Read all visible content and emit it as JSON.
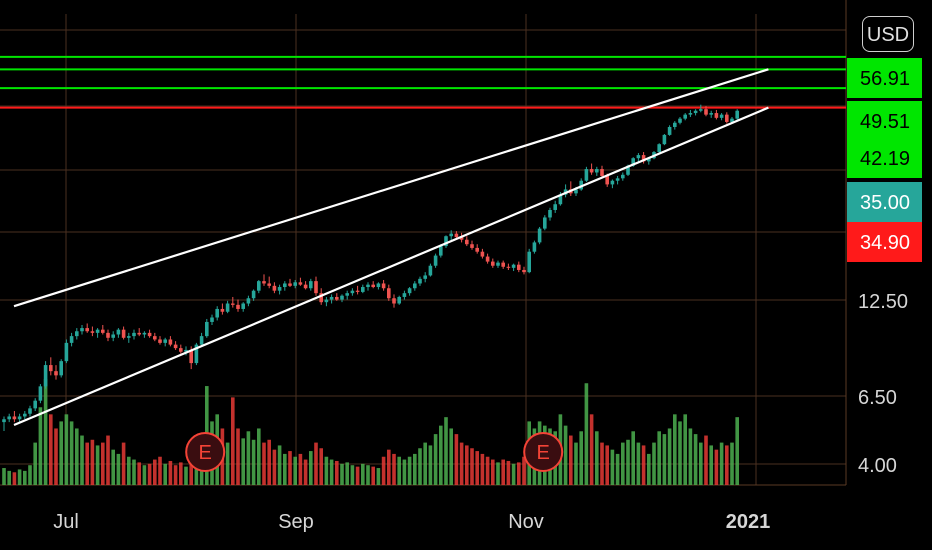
{
  "currency_button": "USD",
  "chart_data": {
    "type": "candlestick",
    "x_tick_labels": [
      {
        "label": "Jul",
        "bold": false
      },
      {
        "label": "Sep",
        "bold": false
      },
      {
        "label": "Nov",
        "bold": false
      },
      {
        "label": "2021",
        "bold": true
      }
    ],
    "y_scale": "log",
    "y_tick_labels": [
      "4.00",
      "6.50",
      "12.50"
    ],
    "ylim": [
      3.6,
      75
    ],
    "price_levels": [
      {
        "label": "56.91",
        "value": 56.91,
        "color": "#00e600",
        "line": true
      },
      {
        "label": "49.51",
        "value": 49.51,
        "color": "#00e600",
        "line": true
      },
      {
        "label": "42.19",
        "value": 42.19,
        "color": "#00e600",
        "line": true
      },
      {
        "label": "35.00",
        "value": 35.0,
        "color": "#26a69a",
        "line": false
      },
      {
        "label": "34.90",
        "value": 34.9,
        "color": "#ff1a1a",
        "line": false
      }
    ],
    "horizontal_lines": [
      {
        "value": 56.91,
        "color": "#00e600"
      },
      {
        "value": 52.5,
        "color": "#00e600"
      },
      {
        "value": 46.5,
        "color": "#00e600"
      },
      {
        "value": 41.0,
        "color": "#ff1a1a"
      }
    ],
    "trend_channel": {
      "color": "#ffffff",
      "upper": [
        {
          "date_index": 0,
          "value": 11.4
        },
        {
          "date_index": 147,
          "value": 52.5
        }
      ],
      "lower": [
        {
          "date_index": 0,
          "value": 5.3
        },
        {
          "date_index": 147,
          "value": 41.0
        }
      ]
    },
    "earnings_markers": [
      {
        "label": "E",
        "date_index": 36
      },
      {
        "label": "E",
        "date_index": 101
      }
    ],
    "colors": {
      "up": "#26a69a",
      "down": "#ef5350",
      "vol_up": "#4caf50",
      "vol_down": "#e53935",
      "grid": "#4a3020"
    },
    "candles": [
      [
        5.4,
        5.6,
        5.1,
        5.5,
        0.12
      ],
      [
        5.5,
        5.7,
        5.4,
        5.6,
        0.1
      ],
      [
        5.6,
        5.8,
        5.4,
        5.5,
        0.09
      ],
      [
        5.5,
        5.7,
        5.4,
        5.6,
        0.11
      ],
      [
        5.6,
        5.8,
        5.5,
        5.7,
        0.1
      ],
      [
        5.7,
        6.0,
        5.6,
        5.9,
        0.14
      ],
      [
        5.9,
        6.3,
        5.8,
        6.2,
        0.3
      ],
      [
        6.2,
        6.9,
        6.1,
        6.8,
        0.55
      ],
      [
        6.8,
        8.0,
        6.7,
        7.8,
        0.75
      ],
      [
        7.8,
        8.2,
        7.3,
        7.5,
        0.5
      ],
      [
        7.5,
        7.8,
        7.1,
        7.3,
        0.4
      ],
      [
        7.3,
        8.1,
        7.2,
        8.0,
        0.45
      ],
      [
        8.0,
        9.2,
        7.9,
        9.0,
        0.5
      ],
      [
        9.0,
        9.6,
        8.8,
        9.4,
        0.45
      ],
      [
        9.4,
        9.9,
        9.2,
        9.7,
        0.4
      ],
      [
        9.7,
        10.1,
        9.5,
        9.9,
        0.35
      ],
      [
        9.9,
        10.2,
        9.6,
        9.7,
        0.3
      ],
      [
        9.7,
        10.0,
        9.4,
        9.6,
        0.32
      ],
      [
        9.6,
        9.9,
        9.3,
        9.8,
        0.28
      ],
      [
        9.8,
        10.1,
        9.5,
        9.6,
        0.3
      ],
      [
        9.6,
        9.8,
        9.1,
        9.3,
        0.35
      ],
      [
        9.3,
        9.7,
        9.1,
        9.5,
        0.25
      ],
      [
        9.5,
        9.9,
        9.3,
        9.8,
        0.22
      ],
      [
        9.8,
        10.0,
        9.2,
        9.3,
        0.3
      ],
      [
        9.3,
        9.6,
        9.0,
        9.4,
        0.2
      ],
      [
        9.4,
        9.8,
        9.2,
        9.6,
        0.18
      ],
      [
        9.6,
        9.9,
        9.4,
        9.5,
        0.16
      ],
      [
        9.5,
        9.7,
        9.3,
        9.6,
        0.14
      ],
      [
        9.6,
        9.8,
        9.3,
        9.4,
        0.15
      ],
      [
        9.4,
        9.6,
        9.1,
        9.2,
        0.18
      ],
      [
        9.2,
        9.4,
        8.9,
        9.0,
        0.2
      ],
      [
        9.0,
        9.3,
        8.8,
        9.2,
        0.15
      ],
      [
        9.2,
        9.4,
        8.8,
        8.9,
        0.17
      ],
      [
        8.9,
        9.1,
        8.6,
        8.7,
        0.14
      ],
      [
        8.7,
        8.9,
        8.4,
        8.5,
        0.16
      ],
      [
        8.5,
        8.8,
        8.3,
        8.6,
        0.13
      ],
      [
        8.6,
        8.8,
        7.6,
        7.9,
        0.22
      ],
      [
        7.9,
        9.0,
        7.8,
        8.9,
        0.25
      ],
      [
        8.9,
        9.6,
        8.8,
        9.4,
        0.3
      ],
      [
        9.4,
        10.5,
        9.3,
        10.3,
        0.7
      ],
      [
        10.3,
        10.8,
        10.1,
        10.6,
        0.45
      ],
      [
        10.6,
        11.4,
        10.4,
        11.2,
        0.5
      ],
      [
        11.2,
        11.6,
        10.8,
        11.0,
        0.4
      ],
      [
        11.0,
        11.8,
        10.9,
        11.6,
        0.3
      ],
      [
        11.6,
        12.1,
        11.3,
        11.5,
        0.62
      ],
      [
        11.5,
        11.9,
        11.0,
        11.2,
        0.4
      ],
      [
        11.2,
        11.7,
        11.0,
        11.6,
        0.33
      ],
      [
        11.6,
        12.2,
        11.4,
        12.0,
        0.38
      ],
      [
        12.0,
        12.7,
        11.8,
        12.6,
        0.32
      ],
      [
        12.6,
        13.5,
        12.4,
        13.4,
        0.4
      ],
      [
        13.4,
        14.0,
        13.0,
        13.2,
        0.3
      ],
      [
        13.2,
        13.8,
        12.8,
        13.0,
        0.32
      ],
      [
        13.0,
        13.3,
        12.4,
        12.6,
        0.25
      ],
      [
        12.6,
        13.1,
        12.3,
        12.9,
        0.28
      ],
      [
        12.9,
        13.4,
        12.6,
        13.2,
        0.22
      ],
      [
        13.2,
        13.6,
        12.9,
        13.0,
        0.24
      ],
      [
        13.0,
        13.5,
        12.8,
        13.3,
        0.2
      ],
      [
        13.3,
        13.7,
        13.0,
        13.1,
        0.22
      ],
      [
        13.1,
        13.4,
        12.7,
        12.8,
        0.18
      ],
      [
        12.8,
        13.6,
        12.6,
        13.4,
        0.24
      ],
      [
        13.4,
        13.8,
        12.2,
        12.4,
        0.3
      ],
      [
        12.4,
        12.8,
        11.5,
        11.7,
        0.26
      ],
      [
        11.7,
        12.1,
        11.4,
        11.9,
        0.2
      ],
      [
        11.9,
        12.3,
        11.6,
        12.1,
        0.18
      ],
      [
        12.1,
        12.4,
        11.8,
        11.9,
        0.17
      ],
      [
        11.9,
        12.3,
        11.7,
        12.2,
        0.15
      ],
      [
        12.2,
        12.6,
        11.9,
        12.4,
        0.16
      ],
      [
        12.4,
        12.8,
        12.2,
        12.6,
        0.14
      ],
      [
        12.6,
        13.0,
        12.3,
        12.5,
        0.13
      ],
      [
        12.5,
        13.1,
        12.4,
        12.9,
        0.15
      ],
      [
        12.9,
        13.3,
        12.6,
        13.1,
        0.14
      ],
      [
        13.1,
        13.4,
        12.8,
        12.9,
        0.13
      ],
      [
        12.9,
        13.3,
        12.7,
        13.2,
        0.12
      ],
      [
        13.2,
        13.5,
        12.6,
        12.8,
        0.2
      ],
      [
        12.8,
        13.1,
        11.8,
        12.0,
        0.25
      ],
      [
        12.0,
        12.3,
        11.3,
        11.6,
        0.22
      ],
      [
        11.6,
        12.2,
        11.5,
        12.1,
        0.2
      ],
      [
        12.1,
        12.6,
        11.9,
        12.4,
        0.18
      ],
      [
        12.4,
        12.9,
        12.2,
        12.8,
        0.2
      ],
      [
        12.8,
        13.4,
        12.6,
        13.2,
        0.22
      ],
      [
        13.2,
        13.8,
        13.0,
        13.6,
        0.26
      ],
      [
        13.6,
        14.2,
        13.3,
        13.9,
        0.3
      ],
      [
        13.9,
        15.0,
        13.8,
        14.8,
        0.28
      ],
      [
        14.8,
        16.0,
        14.6,
        15.8,
        0.36
      ],
      [
        15.8,
        17.0,
        15.6,
        16.8,
        0.42
      ],
      [
        16.8,
        18.0,
        16.6,
        17.9,
        0.48
      ],
      [
        17.9,
        18.6,
        17.4,
        18.2,
        0.4
      ],
      [
        18.2,
        18.5,
        17.6,
        17.8,
        0.36
      ],
      [
        17.8,
        18.3,
        17.2,
        17.5,
        0.3
      ],
      [
        17.5,
        17.9,
        16.8,
        17.0,
        0.28
      ],
      [
        17.0,
        17.4,
        16.4,
        16.6,
        0.26
      ],
      [
        16.6,
        17.0,
        16.0,
        16.2,
        0.24
      ],
      [
        16.2,
        16.5,
        15.5,
        15.7,
        0.22
      ],
      [
        15.7,
        16.0,
        15.0,
        15.2,
        0.2
      ],
      [
        15.2,
        15.5,
        14.6,
        14.8,
        0.18
      ],
      [
        14.8,
        15.3,
        14.6,
        15.1,
        0.16
      ],
      [
        15.1,
        15.3,
        14.5,
        14.7,
        0.18
      ],
      [
        14.7,
        15.0,
        14.4,
        14.6,
        0.17
      ],
      [
        14.6,
        15.0,
        14.3,
        14.9,
        0.15
      ],
      [
        14.9,
        15.2,
        14.2,
        14.4,
        0.16
      ],
      [
        14.4,
        14.7,
        14.0,
        14.2,
        0.2
      ],
      [
        14.2,
        16.5,
        14.1,
        16.2,
        0.45
      ],
      [
        16.2,
        17.4,
        16.0,
        17.2,
        0.4
      ],
      [
        17.2,
        19.0,
        17.0,
        18.8,
        0.45
      ],
      [
        18.8,
        20.5,
        18.6,
        20.2,
        0.42
      ],
      [
        20.2,
        21.5,
        19.8,
        21.2,
        0.4
      ],
      [
        21.2,
        22.5,
        20.8,
        22.0,
        0.38
      ],
      [
        22.0,
        23.8,
        21.8,
        23.4,
        0.5
      ],
      [
        23.4,
        25.0,
        23.0,
        24.2,
        0.42
      ],
      [
        24.2,
        25.5,
        23.2,
        23.6,
        0.35
      ],
      [
        23.6,
        24.6,
        23.2,
        24.2,
        0.3
      ],
      [
        24.2,
        26.0,
        24.0,
        25.6,
        0.38
      ],
      [
        25.6,
        28.0,
        25.4,
        27.6,
        0.72
      ],
      [
        27.6,
        28.6,
        26.6,
        27.0,
        0.5
      ],
      [
        27.0,
        28.0,
        26.4,
        27.6,
        0.38
      ],
      [
        27.6,
        28.2,
        26.0,
        26.4,
        0.3
      ],
      [
        26.4,
        26.8,
        24.6,
        25.0,
        0.28
      ],
      [
        25.0,
        25.8,
        24.4,
        25.6,
        0.25
      ],
      [
        25.6,
        26.4,
        25.0,
        26.0,
        0.22
      ],
      [
        26.0,
        27.0,
        25.6,
        26.6,
        0.3
      ],
      [
        26.6,
        28.4,
        26.4,
        28.2,
        0.32
      ],
      [
        28.2,
        29.8,
        28.0,
        29.6,
        0.38
      ],
      [
        29.6,
        30.6,
        29.0,
        30.2,
        0.3
      ],
      [
        30.2,
        30.8,
        28.6,
        29.0,
        0.28
      ],
      [
        29.0,
        29.8,
        28.4,
        29.6,
        0.22
      ],
      [
        29.6,
        31.0,
        29.4,
        30.8,
        0.3
      ],
      [
        30.8,
        32.6,
        30.6,
        32.4,
        0.38
      ],
      [
        32.4,
        34.6,
        32.2,
        34.4,
        0.36
      ],
      [
        34.4,
        36.6,
        34.2,
        36.2,
        0.4
      ],
      [
        36.2,
        37.6,
        35.6,
        37.2,
        0.5
      ],
      [
        37.2,
        38.6,
        36.8,
        38.2,
        0.45
      ],
      [
        38.2,
        39.6,
        37.8,
        39.2,
        0.5
      ],
      [
        39.2,
        40.4,
        38.6,
        39.6,
        0.4
      ],
      [
        39.6,
        40.6,
        39.0,
        40.2,
        0.36
      ],
      [
        40.2,
        41.8,
        39.8,
        40.6,
        0.3
      ],
      [
        40.6,
        41.4,
        38.8,
        39.2,
        0.35
      ],
      [
        39.2,
        40.2,
        38.4,
        39.6,
        0.28
      ],
      [
        39.6,
        40.4,
        38.0,
        38.4,
        0.25
      ],
      [
        38.4,
        39.6,
        37.8,
        39.2,
        0.3
      ],
      [
        39.2,
        39.8,
        37.0,
        37.4,
        0.28
      ],
      [
        37.4,
        38.6,
        37.0,
        38.2,
        0.3
      ],
      [
        38.2,
        40.6,
        37.8,
        40.2,
        0.48
      ]
    ]
  }
}
